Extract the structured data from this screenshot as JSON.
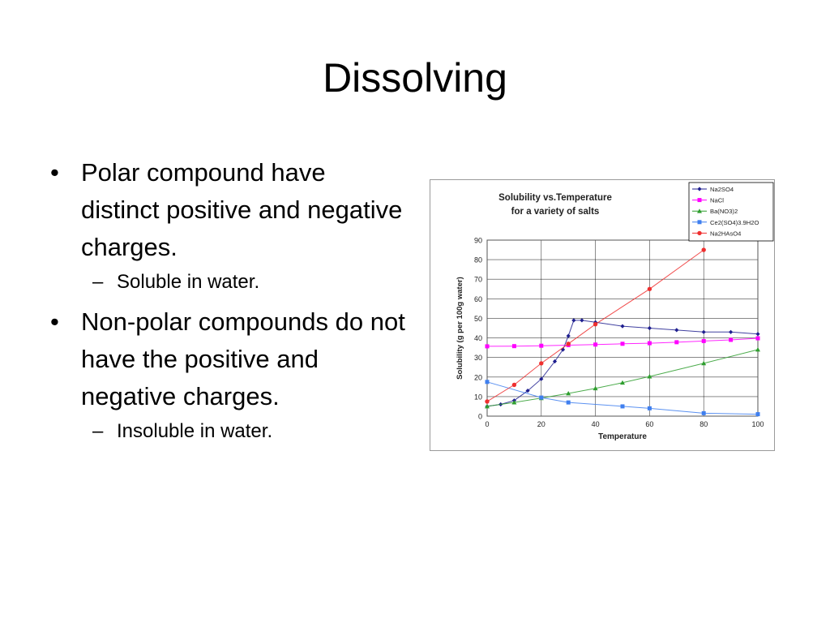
{
  "slide": {
    "title": "Dissolving",
    "bullets": [
      {
        "text": "Polar compound have distinct positive and negative charges.",
        "sub": "Soluble in water."
      },
      {
        "text": "Non-polar compounds do not have the positive and negative charges.",
        "sub": "Insoluble in water."
      }
    ],
    "bullet_symbol": "•",
    "sub_symbol": "–"
  },
  "chart_data": {
    "type": "line",
    "title": "Solubility vs.Temperature\nfor a variety of salts",
    "xlabel": "Temperature",
    "ylabel": "Solubility (g per 100g water)",
    "xlim": [
      0,
      100
    ],
    "ylim": [
      0,
      90
    ],
    "xticks": [
      0,
      20,
      40,
      60,
      80,
      100
    ],
    "yticks": [
      0,
      10,
      20,
      30,
      40,
      50,
      60,
      70,
      80,
      90
    ],
    "grid": true,
    "legend": "top-right",
    "series": [
      {
        "name": "Na2SO4",
        "color": "#1f1f8f",
        "marker": "diamond",
        "points": [
          [
            0,
            5
          ],
          [
            5,
            6
          ],
          [
            10,
            8
          ],
          [
            15,
            13
          ],
          [
            20,
            19
          ],
          [
            25,
            28
          ],
          [
            28,
            34
          ],
          [
            30,
            41
          ],
          [
            32,
            49
          ],
          [
            35,
            49
          ],
          [
            40,
            48
          ],
          [
            50,
            46
          ],
          [
            60,
            45
          ],
          [
            70,
            44
          ],
          [
            80,
            43
          ],
          [
            90,
            43
          ],
          [
            100,
            42
          ]
        ]
      },
      {
        "name": "NaCl",
        "color": "#ff00ff",
        "marker": "square",
        "points": [
          [
            0,
            35.7
          ],
          [
            10,
            35.8
          ],
          [
            20,
            36
          ],
          [
            30,
            36.3
          ],
          [
            40,
            36.6
          ],
          [
            50,
            37
          ],
          [
            60,
            37.3
          ],
          [
            70,
            37.8
          ],
          [
            80,
            38.4
          ],
          [
            90,
            39
          ],
          [
            100,
            39.8
          ]
        ]
      },
      {
        "name": "Ba(NO3)2",
        "color": "#2e9e2e",
        "marker": "triangle",
        "points": [
          [
            0,
            5
          ],
          [
            10,
            7
          ],
          [
            20,
            9.2
          ],
          [
            30,
            11.6
          ],
          [
            40,
            14.2
          ],
          [
            50,
            17.1
          ],
          [
            60,
            20.3
          ],
          [
            80,
            27
          ],
          [
            100,
            34
          ]
        ]
      },
      {
        "name": "Ce2(SO4)3.9H2O",
        "color": "#3f7fef",
        "marker": "square",
        "points": [
          [
            0,
            17.5
          ],
          [
            20,
            9.5
          ],
          [
            30,
            7
          ],
          [
            50,
            5
          ],
          [
            60,
            4
          ],
          [
            80,
            1.5
          ],
          [
            100,
            1
          ]
        ]
      },
      {
        "name": "Na2HAsO4",
        "color": "#ef2f2f",
        "marker": "circle",
        "points": [
          [
            0,
            7.5
          ],
          [
            10,
            16
          ],
          [
            20,
            27
          ],
          [
            30,
            37
          ],
          [
            40,
            47
          ],
          [
            60,
            65
          ],
          [
            80,
            85
          ]
        ]
      }
    ]
  }
}
